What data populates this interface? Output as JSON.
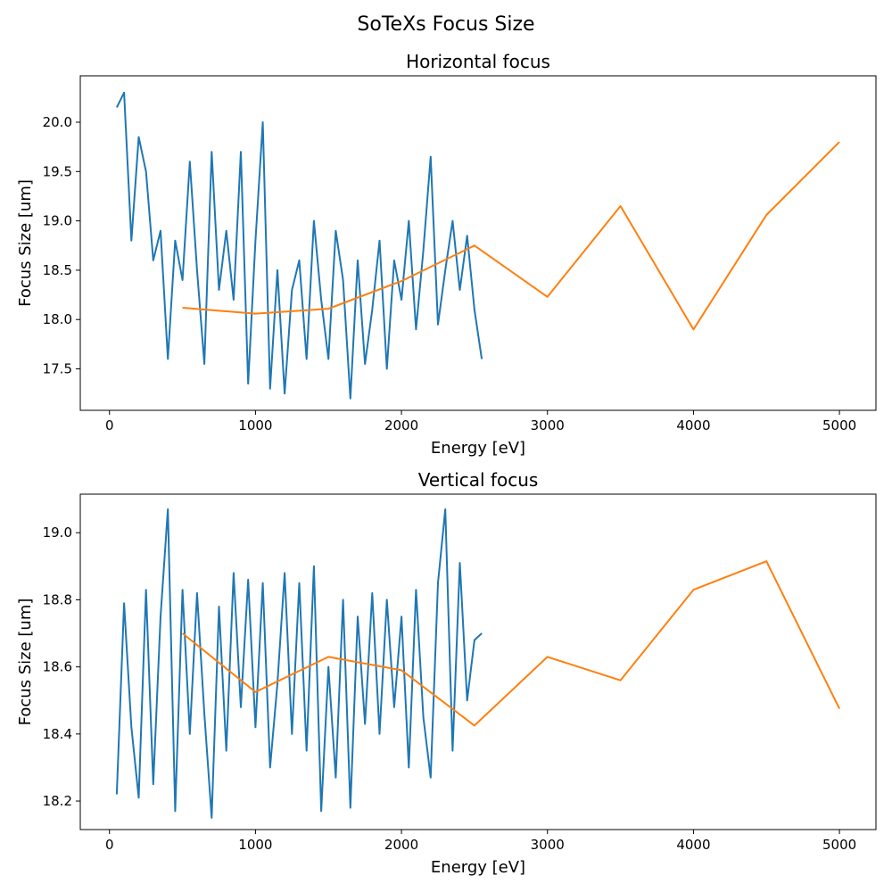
{
  "figure": {
    "suptitle": "SoTeXs Focus Size"
  },
  "chart_data": [
    {
      "type": "line",
      "title": "Horizontal focus",
      "xlabel": "Energy [eV]",
      "ylabel": "Focus Size [um]",
      "xlim": [
        -200,
        5250
      ],
      "ylim": [
        17.08,
        20.47
      ],
      "xticks": [
        0,
        1000,
        2000,
        3000,
        4000,
        5000
      ],
      "xtick_labels": [
        "0",
        "1000",
        "2000",
        "3000",
        "4000",
        "5000"
      ],
      "yticks": [
        17.5,
        18.0,
        18.5,
        19.0,
        19.5,
        20.0
      ],
      "ytick_labels": [
        "17.5",
        "18.0",
        "18.5",
        "19.0",
        "19.5",
        "20.0"
      ],
      "grid": false,
      "legend": "none",
      "series": [
        {
          "color": "#1f77b4",
          "x": [
            50,
            100,
            150,
            200,
            250,
            300,
            350,
            400,
            450,
            500,
            550,
            600,
            650,
            700,
            750,
            800,
            850,
            900,
            950,
            1000,
            1050,
            1100,
            1150,
            1200,
            1250,
            1300,
            1350,
            1400,
            1450,
            1500,
            1550,
            1600,
            1650,
            1700,
            1750,
            1800,
            1850,
            1900,
            1950,
            2000,
            2050,
            2100,
            2150,
            2200,
            2250,
            2300,
            2350,
            2400,
            2450,
            2500,
            2550
          ],
          "y": [
            20.15,
            20.3,
            18.8,
            19.85,
            19.5,
            18.6,
            18.9,
            17.6,
            18.8,
            18.4,
            19.6,
            18.5,
            17.55,
            19.7,
            18.3,
            18.9,
            18.2,
            19.7,
            17.35,
            18.8,
            20.0,
            17.3,
            18.5,
            17.25,
            18.3,
            18.6,
            17.6,
            19.0,
            18.2,
            17.6,
            18.9,
            18.4,
            17.2,
            18.6,
            17.55,
            18.1,
            18.8,
            17.5,
            18.6,
            18.2,
            19.0,
            17.9,
            18.7,
            19.65,
            17.95,
            18.5,
            19.0,
            18.3,
            18.85,
            18.1,
            17.6
          ]
        },
        {
          "color": "#ff7f0e",
          "x": [
            500,
            1000,
            1500,
            2000,
            2500,
            3000,
            3500,
            4000,
            4500,
            5000
          ],
          "y": [
            18.12,
            18.06,
            18.11,
            18.39,
            18.75,
            18.23,
            19.15,
            17.9,
            19.06,
            19.8
          ]
        }
      ]
    },
    {
      "type": "line",
      "title": "Vertical focus",
      "xlabel": "Energy [eV]",
      "ylabel": "Focus Size [um]",
      "xlim": [
        -200,
        5250
      ],
      "ylim": [
        18.115,
        19.115
      ],
      "xticks": [
        0,
        1000,
        2000,
        3000,
        4000,
        5000
      ],
      "xtick_labels": [
        "0",
        "1000",
        "2000",
        "3000",
        "4000",
        "5000"
      ],
      "yticks": [
        18.2,
        18.4,
        18.6,
        18.8,
        19.0
      ],
      "ytick_labels": [
        "18.2",
        "18.4",
        "18.6",
        "18.8",
        "19.0"
      ],
      "grid": false,
      "legend": "none",
      "series": [
        {
          "color": "#1f77b4",
          "x": [
            50,
            100,
            150,
            200,
            250,
            300,
            350,
            400,
            450,
            500,
            550,
            600,
            650,
            700,
            750,
            800,
            850,
            900,
            950,
            1000,
            1050,
            1100,
            1150,
            1200,
            1250,
            1300,
            1350,
            1400,
            1450,
            1500,
            1550,
            1600,
            1650,
            1700,
            1750,
            1800,
            1850,
            1900,
            1950,
            2000,
            2050,
            2100,
            2150,
            2200,
            2250,
            2300,
            2350,
            2400,
            2450,
            2500,
            2550
          ],
          "y": [
            18.22,
            18.79,
            18.42,
            18.21,
            18.83,
            18.25,
            18.75,
            19.07,
            18.17,
            18.83,
            18.4,
            18.82,
            18.46,
            18.15,
            18.78,
            18.35,
            18.88,
            18.48,
            18.86,
            18.42,
            18.85,
            18.3,
            18.55,
            18.88,
            18.4,
            18.85,
            18.35,
            18.9,
            18.17,
            18.6,
            18.27,
            18.8,
            18.18,
            18.75,
            18.43,
            18.82,
            18.4,
            18.8,
            18.48,
            18.75,
            18.3,
            18.83,
            18.45,
            18.27,
            18.85,
            19.07,
            18.35,
            18.91,
            18.5,
            18.68,
            18.7
          ]
        },
        {
          "color": "#ff7f0e",
          "x": [
            500,
            1000,
            1500,
            2000,
            2500,
            3000,
            3500,
            4000,
            4500,
            5000
          ],
          "y": [
            18.7,
            18.525,
            18.63,
            18.59,
            18.425,
            18.63,
            18.56,
            18.83,
            18.915,
            18.475
          ]
        }
      ]
    }
  ]
}
